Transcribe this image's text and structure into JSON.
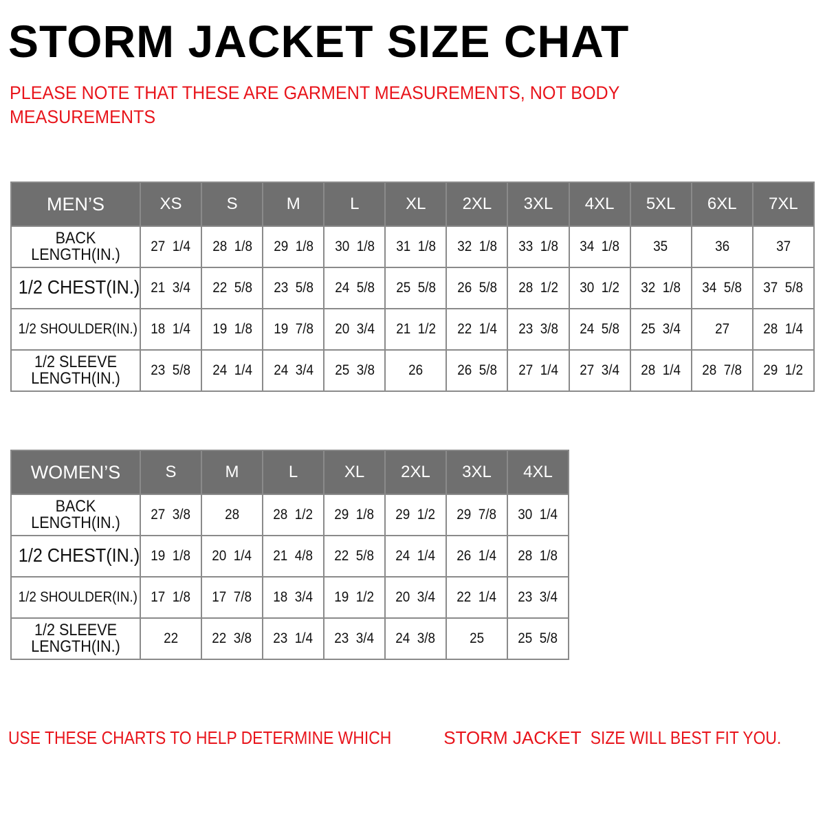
{
  "title": "STORM JACKET SIZE CHAT",
  "note": "PLEASE NOTE THAT THESE ARE GARMENT MEASUREMENTS, NOT BODY MEASUREMENTS",
  "colors": {
    "header_bg": "#6f6f6f",
    "accent_red": "#e8141b",
    "border": "#8a8a8a"
  },
  "mens": {
    "label": "MEN’S",
    "sizes": [
      "XS",
      "S",
      "M",
      "L",
      "XL",
      "2XL",
      "3XL",
      "4XL",
      "5XL",
      "6XL",
      "7XL"
    ],
    "rows": [
      {
        "label": "BACK LENGTH(IN.)",
        "values": [
          "27 1/4",
          "28 1/8",
          "29 1/8",
          "30 1/8",
          "31 1/8",
          "32 1/8",
          "33 1/8",
          "34 1/8",
          "35",
          "36",
          "37"
        ]
      },
      {
        "label": "1/2 CHEST(IN.)",
        "values": [
          "21 3/4",
          "22 5/8",
          "23 5/8",
          "24 5/8",
          "25 5/8",
          "26 5/8",
          "28 1/2",
          "30 1/2",
          "32 1/8",
          "34 5/8",
          "37 5/8"
        ]
      },
      {
        "label": "1/2 SHOULDER(IN.)",
        "values": [
          "18 1/4",
          "19 1/8",
          "19 7/8",
          "20 3/4",
          "21 1/2",
          "22 1/4",
          "23 3/8",
          "24 5/8",
          "25 3/4",
          "27",
          "28 1/4"
        ]
      },
      {
        "label": "1/2 SLEEVE LENGTH(IN.)",
        "values": [
          "23 5/8",
          "24 1/4",
          "24 3/4",
          "25 3/8",
          "26",
          "26 5/8",
          "27 1/4",
          "27 3/4",
          "28 1/4",
          "28 7/8",
          "29 1/2"
        ]
      }
    ]
  },
  "womens": {
    "label": "WOMEN’S",
    "sizes": [
      "S",
      "M",
      "L",
      "XL",
      "2XL",
      "3XL",
      "4XL"
    ],
    "rows": [
      {
        "label": "BACK LENGTH(IN.)",
        "values": [
          "27 3/8",
          "28",
          "28 1/2",
          "29 1/8",
          "29 1/2",
          "29 7/8",
          "30 1/4"
        ]
      },
      {
        "label": "1/2 CHEST(IN.)",
        "values": [
          "19 1/8",
          "20 1/4",
          "21 4/8",
          "22 5/8",
          "24 1/4",
          "26 1/4",
          "28 1/8"
        ]
      },
      {
        "label": "1/2 SHOULDER(IN.)",
        "values": [
          "17 1/8",
          "17 7/8",
          "18 3/4",
          "19 1/2",
          "20 3/4",
          "22 1/4",
          "23 3/4"
        ]
      },
      {
        "label": "1/2 SLEEVE LENGTH(IN.)",
        "values": [
          "22",
          "22 3/8",
          "23 1/4",
          "23 3/4",
          "24 3/8",
          "25",
          "25 5/8"
        ]
      }
    ]
  },
  "footer": {
    "part1": "USE THESE CHARTS TO HELP DETERMINE WHICH ",
    "part2": "STORM JACKET",
    "part3": "  SIZE WILL BEST FIT YOU."
  }
}
